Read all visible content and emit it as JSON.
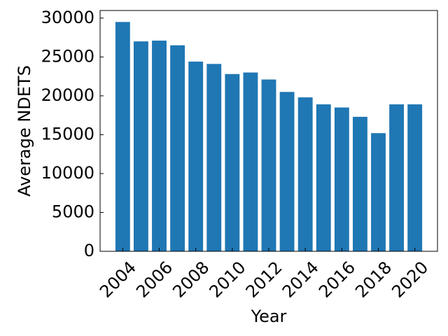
{
  "chart_data": {
    "type": "bar",
    "x": [
      2004,
      2005,
      2006,
      2007,
      2008,
      2009,
      2010,
      2011,
      2012,
      2013,
      2014,
      2015,
      2016,
      2017,
      2018,
      2019,
      2020
    ],
    "values": [
      29500,
      27000,
      27100,
      26500,
      24400,
      24100,
      22800,
      23000,
      22100,
      20500,
      19800,
      18900,
      18500,
      17300,
      15200,
      18900,
      18900
    ],
    "color": "#1f77b4",
    "xlabel": "Year",
    "ylabel": "Average NDETS",
    "xlim": [
      2002.76,
      2021.24
    ],
    "xticks": [
      2004,
      2006,
      2008,
      2010,
      2012,
      2014,
      2016,
      2018,
      2020
    ],
    "ylim": [
      0,
      30975
    ],
    "yticks": [
      0,
      5000,
      10000,
      15000,
      20000,
      25000,
      30000
    ]
  }
}
